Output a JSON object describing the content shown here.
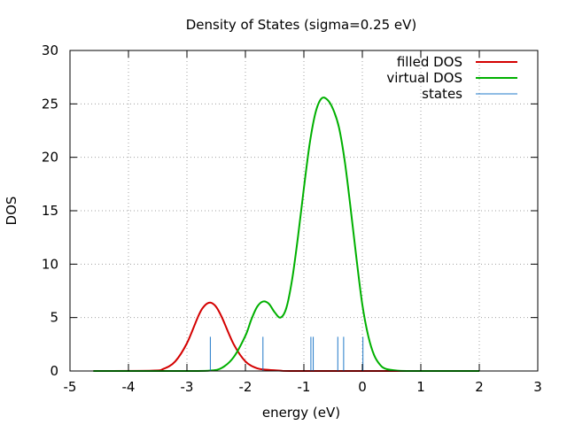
{
  "chart_data": {
    "type": "line",
    "title": "Density of States (sigma=0.25 eV)",
    "xlabel": "energy (eV)",
    "ylabel": "DOS",
    "xlim": [
      -5,
      3
    ],
    "ylim": [
      0,
      30
    ],
    "xticks": [
      -5,
      -4,
      -3,
      -2,
      -1,
      0,
      1,
      2,
      3
    ],
    "xtick_labels": [
      "-5",
      "-4",
      "-3",
      "-2",
      "-1",
      "0",
      "1",
      "2",
      "3"
    ],
    "yticks": [
      0,
      5,
      10,
      15,
      20,
      25,
      30
    ],
    "ytick_labels": [
      "0",
      "5",
      "10",
      "15",
      "20",
      "25",
      "30"
    ],
    "grid": true,
    "legend_position": "top-right",
    "series": [
      {
        "name": "filled DOS",
        "kind": "line",
        "color": "#d40000",
        "x": [
          -4.6,
          -3.6,
          -3.4,
          -3.2,
          -3.0,
          -2.8,
          -2.7,
          -2.6,
          -2.5,
          -2.4,
          -2.2,
          -2.0,
          -1.8,
          -1.6,
          -1.4,
          -1.2,
          0.0,
          2.0
        ],
        "y": [
          0,
          0.03,
          0.2,
          0.9,
          2.6,
          5.2,
          6.1,
          6.4,
          6.0,
          5.0,
          2.5,
          0.9,
          0.25,
          0.1,
          0.03,
          0.0,
          0.0,
          0.0
        ]
      },
      {
        "name": "virtual DOS",
        "kind": "line",
        "color": "#00b000",
        "x": [
          -4.6,
          -3.0,
          -2.6,
          -2.4,
          -2.2,
          -2.0,
          -1.9,
          -1.8,
          -1.7,
          -1.6,
          -1.5,
          -1.4,
          -1.3,
          -1.2,
          -1.1,
          -1.0,
          -0.9,
          -0.8,
          -0.7,
          -0.6,
          -0.5,
          -0.4,
          -0.3,
          -0.2,
          -0.1,
          0.0,
          0.1,
          0.2,
          0.3,
          0.4,
          0.6,
          0.8,
          1.0,
          2.0
        ],
        "y": [
          0,
          0.0,
          0.04,
          0.3,
          1.3,
          3.3,
          4.8,
          6.0,
          6.5,
          6.3,
          5.5,
          5.0,
          5.9,
          8.6,
          12.6,
          17.1,
          21.3,
          24.2,
          25.5,
          25.4,
          24.5,
          22.8,
          19.6,
          15.2,
          10.5,
          6.2,
          3.3,
          1.5,
          0.6,
          0.2,
          0.03,
          0.0,
          0.0,
          0.0
        ]
      },
      {
        "name": "states",
        "kind": "impulses",
        "color": "#1f78c8",
        "x": [
          -2.6,
          -1.7,
          -0.88,
          -0.84,
          -0.42,
          -0.32,
          0.01
        ],
        "y": [
          3.2,
          3.2,
          3.2,
          3.2,
          3.2,
          3.2,
          3.2
        ]
      }
    ]
  }
}
